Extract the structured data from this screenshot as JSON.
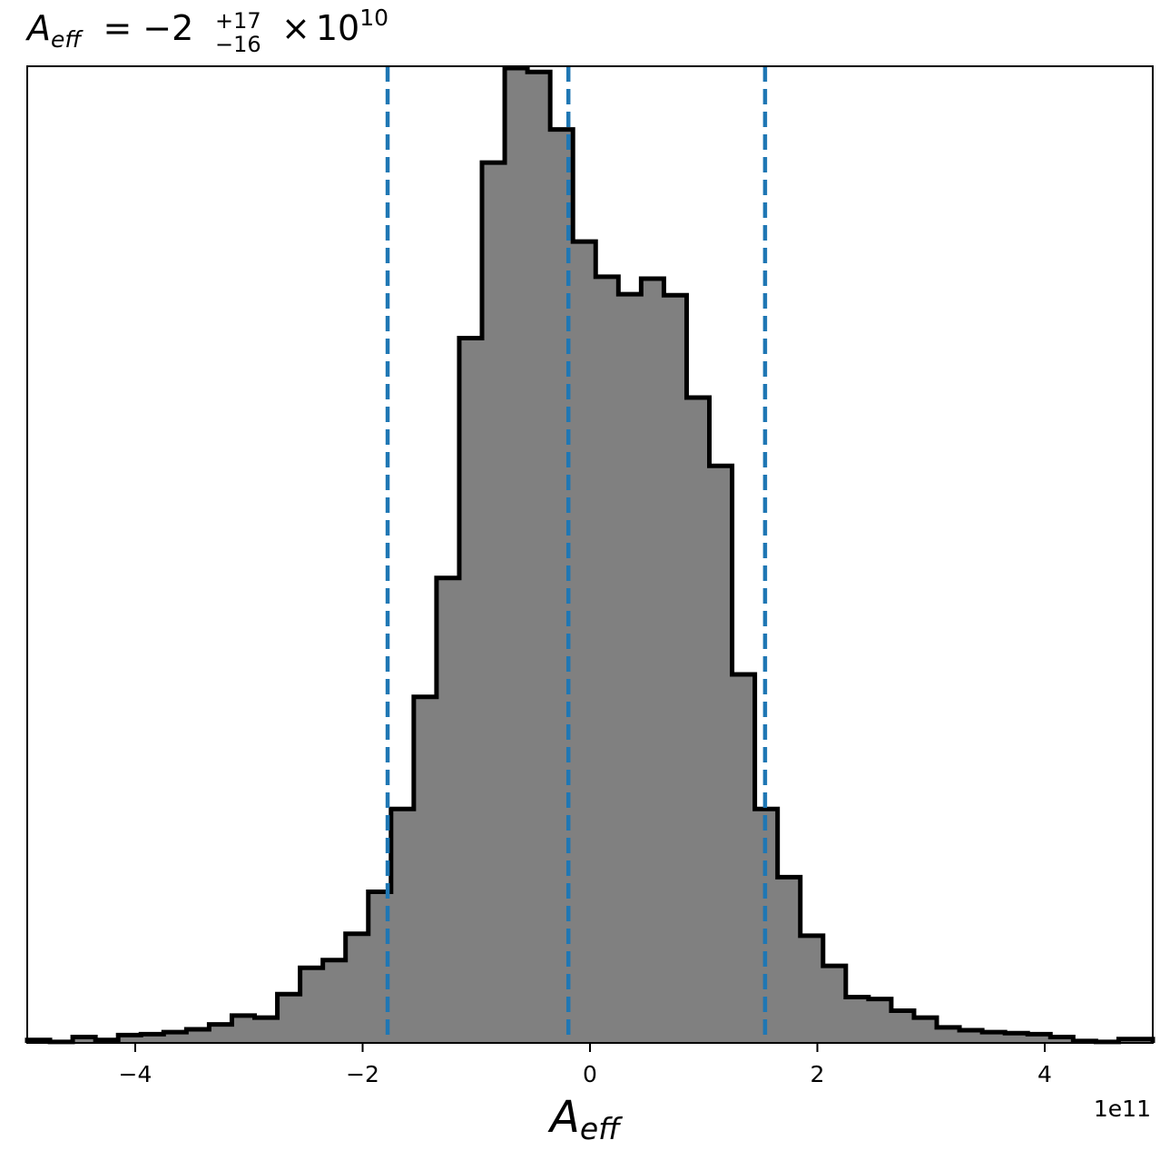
{
  "chart_data": {
    "type": "histogram",
    "title": {
      "symbol": "A",
      "symbol_subscript": "eff",
      "equals": "=",
      "median": "−2",
      "upper_err": "+17",
      "lower_err": "−16",
      "times": "×",
      "base": "10",
      "exponent": "10"
    },
    "xlabel": {
      "symbol": "A",
      "subscript": "eff"
    },
    "x_offset_label": "1e11",
    "xlim": [
      -4.95,
      4.95
    ],
    "ylim": [
      0,
      1.0
    ],
    "x_ticks": [
      {
        "value": -4,
        "label": "−4"
      },
      {
        "value": -2,
        "label": "−2"
      },
      {
        "value": 0,
        "label": "0"
      },
      {
        "value": 2,
        "label": "2"
      },
      {
        "value": 4,
        "label": "4"
      }
    ],
    "y_ticks_shown": false,
    "grid": false,
    "histogram_fill_color": "#808080",
    "histogram_edge_color": "#000000",
    "quantile_line_color": "#1f77b4",
    "quantile_lines": [
      -1.78,
      -0.19,
      1.54
    ],
    "bin_edges": [
      -4.95,
      -4.75,
      -4.55,
      -4.35,
      -4.15,
      -3.95,
      -3.75,
      -3.55,
      -3.35,
      -3.15,
      -2.95,
      -2.75,
      -2.55,
      -2.35,
      -2.15,
      -1.95,
      -1.75,
      -1.55,
      -1.35,
      -1.15,
      -0.95,
      -0.75,
      -0.55,
      -0.35,
      -0.15,
      0.05,
      0.25,
      0.45,
      0.65,
      0.85,
      1.05,
      1.25,
      1.45,
      1.65,
      1.85,
      2.05,
      2.25,
      2.45,
      2.65,
      2.85,
      3.05,
      3.25,
      3.45,
      3.65,
      3.85,
      4.05,
      4.25,
      4.45,
      4.65,
      4.85,
      4.95
    ],
    "counts": [
      0.003,
      0.001,
      0.006,
      0.003,
      0.008,
      0.009,
      0.011,
      0.014,
      0.019,
      0.028,
      0.026,
      0.05,
      0.077,
      0.085,
      0.112,
      0.155,
      0.24,
      0.355,
      0.477,
      0.723,
      0.903,
      1.0,
      0.996,
      0.937,
      0.822,
      0.786,
      0.768,
      0.784,
      0.767,
      0.662,
      0.592,
      0.378,
      0.24,
      0.17,
      0.11,
      0.079,
      0.047,
      0.045,
      0.033,
      0.026,
      0.016,
      0.013,
      0.011,
      0.01,
      0.009,
      0.006,
      0.002,
      0.001,
      0.004,
      0.004
    ]
  }
}
